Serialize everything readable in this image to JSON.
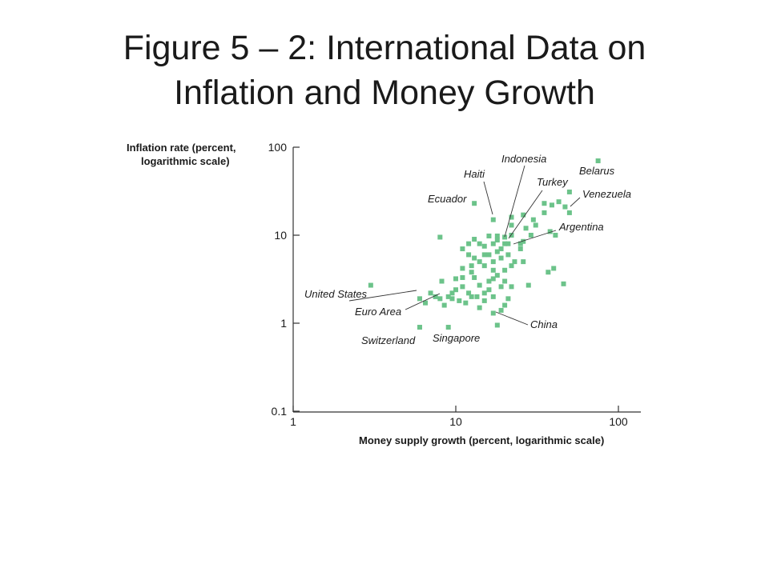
{
  "slide": {
    "title_line1": "Figure 5 – 2: International Data on",
    "title_line2": "Inflation and Money Growth"
  },
  "chart_data": {
    "type": "scatter",
    "xlabel": "Money supply growth (percent, logarithmic scale)",
    "ylabel_line1": "Inflation rate (percent,",
    "ylabel_line2": "logarithmic scale)",
    "x_scale": "log",
    "y_scale": "log",
    "xlim": [
      1,
      130
    ],
    "ylim": [
      0.1,
      100
    ],
    "x_ticks": [
      1,
      10,
      100
    ],
    "x_tick_labels": [
      "1",
      "10",
      "100"
    ],
    "y_ticks": [
      0.1,
      1,
      10,
      100
    ],
    "y_tick_labels": [
      "0.1",
      "1",
      "10",
      "100"
    ],
    "grid": false,
    "legend": "none",
    "marker_color": "#6cc38a",
    "points": [
      [
        3,
        2.7
      ],
      [
        6,
        0.9
      ],
      [
        9,
        0.9
      ],
      [
        8,
        9.5
      ],
      [
        13,
        23
      ],
      [
        17,
        1.3
      ],
      [
        18,
        0.95
      ],
      [
        75,
        70
      ],
      [
        50,
        31
      ],
      [
        43,
        24
      ],
      [
        50,
        18
      ],
      [
        35,
        23
      ],
      [
        39,
        22
      ],
      [
        47,
        21
      ],
      [
        35,
        18
      ],
      [
        31,
        13
      ],
      [
        30,
        15
      ],
      [
        26,
        17
      ],
      [
        22,
        16
      ],
      [
        17,
        15
      ],
      [
        22,
        13
      ],
      [
        27,
        12
      ],
      [
        29,
        10
      ],
      [
        41,
        10
      ],
      [
        38,
        11
      ],
      [
        21,
        8
      ],
      [
        19,
        7
      ],
      [
        21,
        6
      ],
      [
        25,
        7
      ],
      [
        26,
        8.5
      ],
      [
        22,
        10
      ],
      [
        20,
        9.5
      ],
      [
        18,
        9.8
      ],
      [
        16,
        9.8
      ],
      [
        18,
        8.8
      ],
      [
        20,
        8
      ],
      [
        17,
        8
      ],
      [
        15,
        7.5
      ],
      [
        14,
        8
      ],
      [
        13,
        9
      ],
      [
        12,
        8
      ],
      [
        11,
        7
      ],
      [
        12,
        6
      ],
      [
        14,
        5
      ],
      [
        13,
        5.5
      ],
      [
        15,
        6
      ],
      [
        17,
        5
      ],
      [
        16,
        6
      ],
      [
        18,
        6.5
      ],
      [
        19,
        5.5
      ],
      [
        15,
        4.5
      ],
      [
        17,
        4
      ],
      [
        20,
        4
      ],
      [
        22,
        4.5
      ],
      [
        23,
        5
      ],
      [
        26,
        5
      ],
      [
        28,
        2.7
      ],
      [
        37,
        3.8
      ],
      [
        40,
        4.2
      ],
      [
        46,
        2.8
      ],
      [
        18,
        3.5
      ],
      [
        20,
        3
      ],
      [
        22,
        2.6
      ],
      [
        19,
        2.6
      ],
      [
        16,
        3
      ],
      [
        13,
        3.3
      ],
      [
        11,
        3.3
      ],
      [
        10,
        3.2
      ],
      [
        14,
        2.7
      ],
      [
        15,
        2.2
      ],
      [
        16,
        2.4
      ],
      [
        12,
        2.2
      ],
      [
        11,
        2.6
      ],
      [
        10,
        2.4
      ],
      [
        9.5,
        2.2
      ],
      [
        9.5,
        1.9
      ],
      [
        10.5,
        1.8
      ],
      [
        11.5,
        1.7
      ],
      [
        12.5,
        2
      ],
      [
        13.5,
        2
      ],
      [
        14,
        1.5
      ],
      [
        15,
        1.8
      ],
      [
        17,
        2
      ],
      [
        20,
        1.6
      ],
      [
        21,
        1.9
      ],
      [
        19,
        1.4
      ],
      [
        9,
        2
      ],
      [
        8.5,
        1.6
      ],
      [
        8,
        1.9
      ],
      [
        7.5,
        2
      ],
      [
        7,
        2.2
      ],
      [
        6.5,
        1.7
      ],
      [
        6,
        1.9
      ],
      [
        8.2,
        3
      ],
      [
        12.5,
        3.8
      ],
      [
        11,
        4.2
      ],
      [
        17,
        3.2
      ],
      [
        25,
        8
      ],
      [
        12.5,
        4.5
      ]
    ],
    "annotations": [
      {
        "text": "Belarus"
      },
      {
        "text": "Indonesia"
      },
      {
        "text": "Haiti"
      },
      {
        "text": "Turkey"
      },
      {
        "text": "Venezuela"
      },
      {
        "text": "Ecuador"
      },
      {
        "text": "Argentina"
      },
      {
        "text": "United States"
      },
      {
        "text": "Euro Area"
      },
      {
        "text": "China"
      },
      {
        "text": "Switzerland"
      },
      {
        "text": "Singapore"
      }
    ]
  }
}
